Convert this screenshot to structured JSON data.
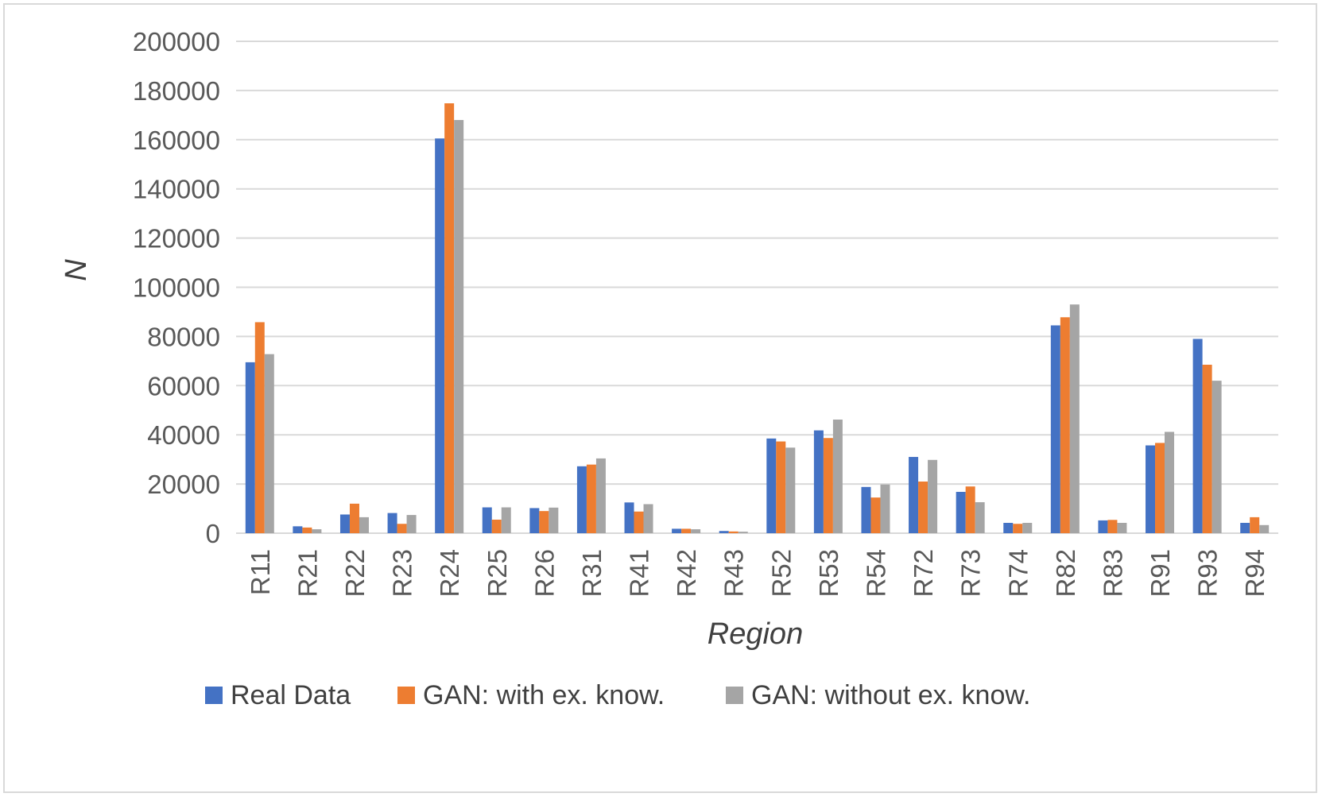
{
  "chart_data": {
    "type": "bar",
    "xlabel": "Region",
    "ylabel": "N",
    "ylim": [
      0,
      200000
    ],
    "yticks": [
      0,
      20000,
      40000,
      60000,
      80000,
      100000,
      120000,
      140000,
      160000,
      180000,
      200000
    ],
    "ytick_labels": [
      "0",
      "20000",
      "40000",
      "60000",
      "80000",
      "100000",
      "120000",
      "140000",
      "160000",
      "180000",
      "200000"
    ],
    "grid": true,
    "legend_position": "bottom",
    "categories": [
      "R11",
      "R21",
      "R22",
      "R23",
      "R24",
      "R25",
      "R26",
      "R31",
      "R41",
      "R42",
      "R43",
      "R52",
      "R53",
      "R54",
      "R72",
      "R73",
      "R74",
      "R82",
      "R83",
      "R91",
      "R93",
      "R94"
    ],
    "series": [
      {
        "name": "Real Data",
        "color": "#4472c4",
        "values": [
          69500,
          2800,
          7600,
          8200,
          160500,
          10500,
          10200,
          27200,
          12500,
          1800,
          900,
          38500,
          41800,
          18800,
          31000,
          16800,
          4200,
          84500,
          5200,
          35700,
          79000,
          4200
        ]
      },
      {
        "name": "GAN: with ex. know.",
        "color": "#ed7d31",
        "values": [
          85800,
          2300,
          12000,
          3800,
          174800,
          5500,
          9000,
          27900,
          8800,
          1800,
          700,
          37300,
          38700,
          14500,
          21000,
          19000,
          3800,
          87800,
          5400,
          36700,
          68500,
          6500
        ]
      },
      {
        "name": "GAN: without ex. know.",
        "color": "#a5a5a5",
        "values": [
          72800,
          1600,
          6500,
          7400,
          168000,
          10500,
          10400,
          30400,
          11800,
          1600,
          600,
          34800,
          46200,
          19800,
          29800,
          12600,
          4200,
          93000,
          4200,
          41200,
          62000,
          3300
        ]
      }
    ]
  }
}
